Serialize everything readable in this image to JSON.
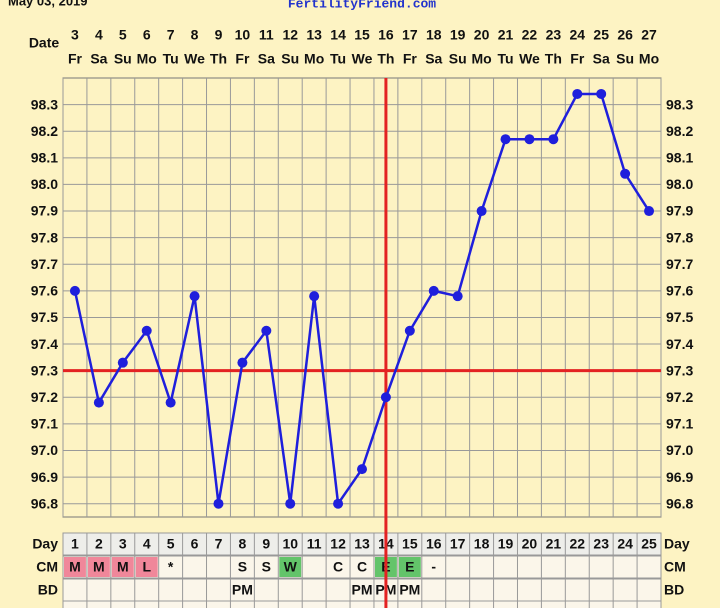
{
  "header": {
    "date": "May 03, 2019",
    "site": "FertilityFriend.com"
  },
  "chart_data": {
    "type": "line",
    "date_label": "Date",
    "dates": [
      "3",
      "4",
      "5",
      "6",
      "7",
      "8",
      "9",
      "10",
      "11",
      "12",
      "13",
      "14",
      "15",
      "16",
      "17",
      "18",
      "19",
      "20",
      "21",
      "22",
      "23",
      "24",
      "25",
      "26",
      "27"
    ],
    "weekdays": [
      "Fr",
      "Sa",
      "Su",
      "Mo",
      "Tu",
      "We",
      "Th",
      "Fr",
      "Sa",
      "Su",
      "Mo",
      "Tu",
      "We",
      "Th",
      "Fr",
      "Sa",
      "Su",
      "Mo",
      "Tu",
      "We",
      "Th",
      "Fr",
      "Sa",
      "Su",
      "Mo"
    ],
    "series": [
      {
        "color": "#1f1fdc",
        "values": [
          97.6,
          97.18,
          97.33,
          97.45,
          97.18,
          97.58,
          96.8,
          97.33,
          97.45,
          96.8,
          97.58,
          96.8,
          96.93,
          97.2,
          97.45,
          97.6,
          97.58,
          97.9,
          98.17,
          98.17,
          98.17,
          98.34,
          98.34,
          98.04,
          97.9
        ]
      }
    ],
    "ylim": [
      96.75,
      98.4
    ],
    "yticks": [
      98.3,
      98.2,
      98.1,
      {
        "value": 98,
        "label": "98.0"
      },
      97.9,
      97.8,
      97.7,
      97.6,
      97.5,
      97.4,
      97.3,
      97.2,
      97.1,
      {
        "value": 97,
        "label": "97.0"
      },
      96.9,
      96.8
    ],
    "grid": true,
    "coverline": 97.3,
    "ovulation_day": 14,
    "reference_color": "#e32222",
    "day_label": "Day",
    "cycle_days": [
      1,
      2,
      3,
      4,
      5,
      6,
      7,
      8,
      9,
      10,
      11,
      12,
      13,
      14,
      15,
      16,
      17,
      18,
      19,
      20,
      21,
      22,
      23,
      24,
      25
    ],
    "cm_label": "CM",
    "cm": [
      "M",
      "M",
      "M",
      "L",
      "*",
      null,
      null,
      "S",
      "S",
      "W",
      null,
      "C",
      "C",
      "E",
      "E",
      "-",
      null,
      null,
      null,
      null,
      null,
      null,
      null,
      null,
      null
    ],
    "cm_colors": {
      "M": "#f0879a",
      "L": "#f0879a",
      "W": "#63c46a",
      "E": "#63c46a"
    },
    "bd_label": "BD",
    "bd": [
      null,
      null,
      null,
      null,
      null,
      null,
      null,
      "PM",
      null,
      null,
      null,
      null,
      "PM",
      "PM",
      "PM",
      null,
      null,
      null,
      null,
      null,
      null,
      null,
      null,
      null,
      null
    ]
  }
}
